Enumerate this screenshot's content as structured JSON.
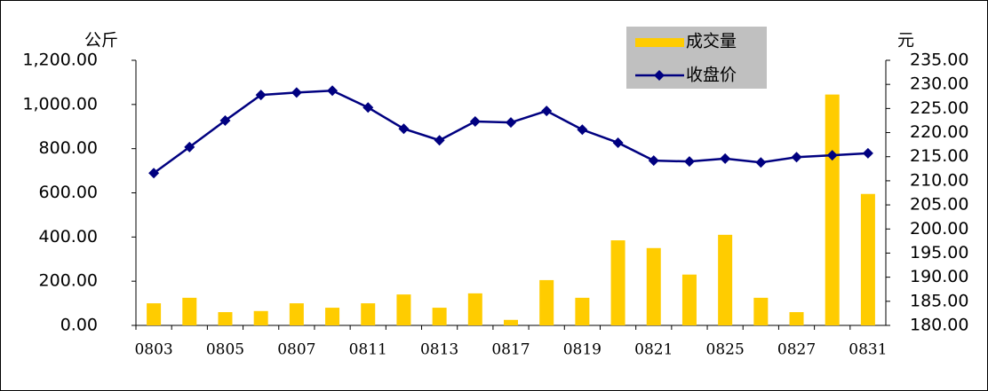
{
  "chart_data": {
    "type": "bar-line",
    "ylabel": "公斤",
    "y2label": "元",
    "categories": [
      "0803",
      null,
      "0805",
      null,
      "0807",
      null,
      "0811",
      null,
      "0813",
      null,
      "0817",
      null,
      "0819",
      null,
      "0821",
      null,
      "0825",
      null,
      "0827",
      null,
      "0831"
    ],
    "series": [
      {
        "name": "成交量",
        "type": "bar",
        "color": "#ffcc00",
        "values": [
          100,
          125,
          60,
          65,
          100,
          80,
          100,
          140,
          80,
          145,
          25,
          205,
          125,
          385,
          350,
          230,
          410,
          125,
          60,
          1045,
          595
        ]
      },
      {
        "name": "收盘价",
        "type": "line",
        "axis": "y2",
        "color": "#000080",
        "values": [
          211.6,
          217,
          222.5,
          227.8,
          228.3,
          228.7,
          225.2,
          220.8,
          218.4,
          222.3,
          222.1,
          224.5,
          220.6,
          217.9,
          214.2,
          214,
          214.6,
          213.8,
          214.9,
          215.3,
          215.7
        ]
      }
    ],
    "ylim": [
      0,
      1200
    ],
    "yticks": [
      {
        "value": 0,
        "label": "0.00"
      },
      {
        "value": 200,
        "label": "200.00"
      },
      {
        "value": 400,
        "label": "400.00"
      },
      {
        "value": 600,
        "label": "600.00"
      },
      {
        "value": 800,
        "label": "800.00"
      },
      {
        "value": 1000,
        "label": "1,000.00"
      },
      {
        "value": 1200,
        "label": "1,200.00"
      }
    ],
    "y2lim": [
      180,
      235
    ],
    "y2ticks": [
      {
        "value": 180,
        "label": "180.00"
      },
      {
        "value": 185,
        "label": "185.00"
      },
      {
        "value": 190,
        "label": "190.00"
      },
      {
        "value": 195,
        "label": "195.00"
      },
      {
        "value": 200,
        "label": "200.00"
      },
      {
        "value": 205,
        "label": "205.00"
      },
      {
        "value": 210,
        "label": "210.00"
      },
      {
        "value": 215,
        "label": "215.00"
      },
      {
        "value": 220,
        "label": "220.00"
      },
      {
        "value": 225,
        "label": "225.00"
      },
      {
        "value": 230,
        "label": "230.00"
      },
      {
        "value": 235,
        "label": "235.00"
      }
    ]
  }
}
